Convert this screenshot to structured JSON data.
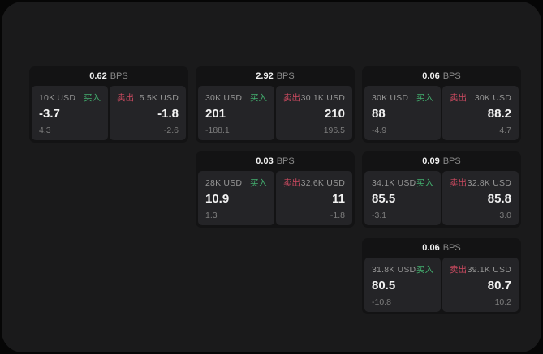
{
  "labels": {
    "buy": "买入",
    "sell": "卖出",
    "bps": "BPS"
  },
  "colors": {
    "page_bg": "#060606",
    "panel_bg": "#1a1a1b",
    "card_bg": "#131314",
    "pane_bg": "#242427",
    "buy_green": "#43b06f",
    "sell_red": "#cc4a60",
    "value_white": "#f2f2f2",
    "label_gray": "#969696",
    "sub_gray": "#7d7d7d"
  },
  "cards": [
    {
      "id": "spread-card-1",
      "col": 1,
      "row": 1,
      "bps": "0.62",
      "buy": {
        "amount": "10K USD",
        "value": "-3.7",
        "sub": "4.3"
      },
      "sell": {
        "amount": "5.5K USD",
        "value": "-1.8",
        "sub": "-2.6"
      }
    },
    {
      "id": "spread-card-2",
      "col": 2,
      "row": 1,
      "bps": "2.92",
      "buy": {
        "amount": "30K USD",
        "value": "201",
        "sub": "-188.1"
      },
      "sell": {
        "amount": "30.1K USD",
        "value": "210",
        "sub": "196.5"
      }
    },
    {
      "id": "spread-card-3",
      "col": 3,
      "row": 1,
      "bps": "0.06",
      "buy": {
        "amount": "30K USD",
        "value": "88",
        "sub": "-4.9"
      },
      "sell": {
        "amount": "30K USD",
        "value": "88.2",
        "sub": "4.7"
      }
    },
    {
      "id": "spread-card-4",
      "col": 2,
      "row": 2,
      "bps": "0.03",
      "buy": {
        "amount": "28K USD",
        "value": "10.9",
        "sub": "1.3"
      },
      "sell": {
        "amount": "32.6K USD",
        "value": "11",
        "sub": "-1.8"
      }
    },
    {
      "id": "spread-card-5",
      "col": 3,
      "row": 2,
      "bps": "0.09",
      "buy": {
        "amount": "34.1K USD",
        "value": "85.5",
        "sub": "-3.1"
      },
      "sell": {
        "amount": "32.8K USD",
        "value": "85.8",
        "sub": "3.0"
      }
    },
    {
      "id": "spread-card-6",
      "col": 3,
      "row": 3,
      "bps": "0.06",
      "buy": {
        "amount": "31.8K USD",
        "value": "80.5",
        "sub": "-10.8"
      },
      "sell": {
        "amount": "39.1K USD",
        "value": "80.7",
        "sub": "10.2"
      }
    }
  ]
}
